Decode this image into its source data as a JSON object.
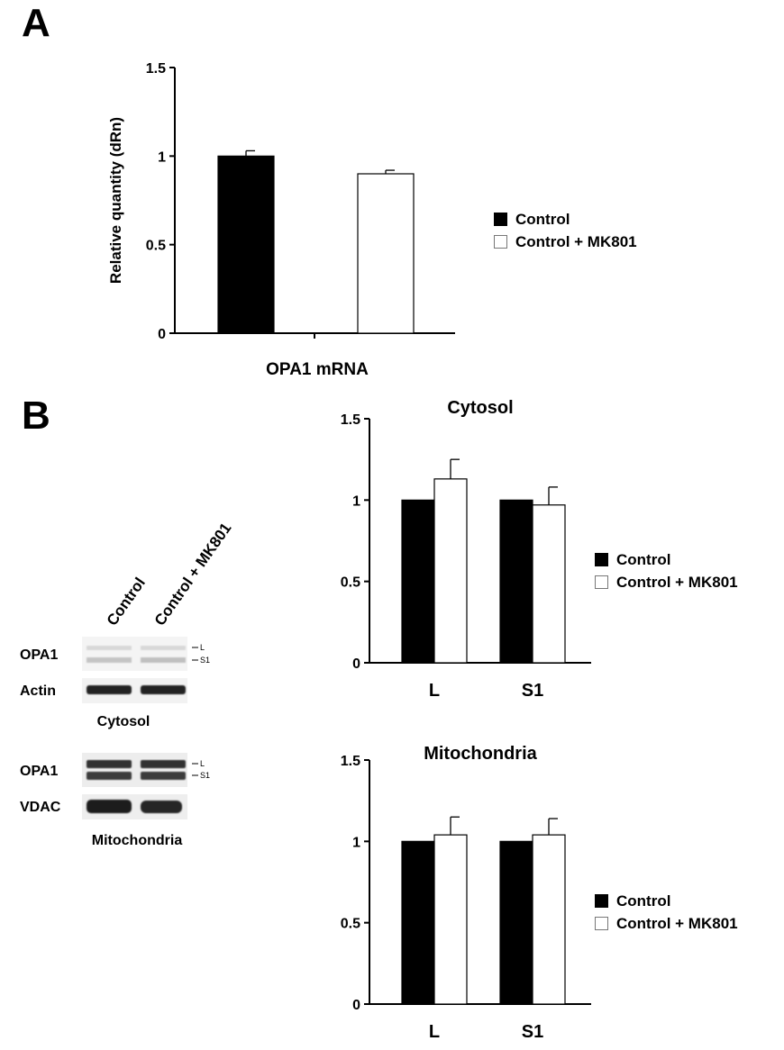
{
  "panels": {
    "a": "A",
    "b": "B"
  },
  "legend": {
    "control": "Control",
    "mk801": "Control + MK801"
  },
  "colors": {
    "control_fill": "#000000",
    "mk801_fill": "#ffffff",
    "mk801_edge": "#777777"
  },
  "chart_data": [
    {
      "type": "bar",
      "panel": "A",
      "categories": [
        "OPA1 mRNA"
      ],
      "series": [
        {
          "name": "Control",
          "values": [
            1.0
          ],
          "errors": [
            0.03
          ]
        },
        {
          "name": "Control + MK801",
          "values": [
            0.9
          ],
          "errors": [
            0.02
          ]
        }
      ],
      "title": "",
      "xlabel": "OPA1 mRNA",
      "ylabel": "Relative quantity (dRn)",
      "ylim": [
        0,
        1.5
      ],
      "yticks": [
        "0",
        "0.5",
        "1",
        "1.5"
      ],
      "grid": false,
      "legend": "right"
    },
    {
      "type": "bar",
      "panel": "B",
      "categories": [
        "L",
        "S1"
      ],
      "series": [
        {
          "name": "Control",
          "values": [
            1.0,
            1.0
          ],
          "errors": [
            0,
            0
          ]
        },
        {
          "name": "Control + MK801",
          "values": [
            1.13,
            0.97
          ],
          "errors": [
            0.12,
            0.11
          ]
        }
      ],
      "title": "Cytosol",
      "xlabel": "",
      "ylabel": "",
      "ylim": [
        0,
        1.5
      ],
      "yticks": [
        "0",
        "0.5",
        "1",
        "1.5"
      ],
      "grid": false,
      "legend": "right"
    },
    {
      "type": "bar",
      "panel": "B",
      "categories": [
        "L",
        "S1"
      ],
      "series": [
        {
          "name": "Control",
          "values": [
            1.0,
            1.0
          ],
          "errors": [
            0,
            0
          ]
        },
        {
          "name": "Control + MK801",
          "values": [
            1.04,
            1.04
          ],
          "errors": [
            0.11,
            0.1
          ]
        }
      ],
      "title": "Mitochondria",
      "xlabel": "",
      "ylabel": "",
      "ylim": [
        0,
        1.5
      ],
      "yticks": [
        "0",
        "0.5",
        "1",
        "1.5"
      ],
      "grid": false,
      "legend": "right"
    }
  ],
  "blot": {
    "lanes": [
      "Control",
      "Control + MK801"
    ],
    "cytosol": {
      "rows": [
        "OPA1",
        "Actin"
      ],
      "caption": "Cytosol"
    },
    "mito": {
      "rows": [
        "OPA1",
        "VDAC"
      ],
      "caption": "Mitochondria"
    },
    "band_markers": [
      "L",
      "S1"
    ]
  }
}
